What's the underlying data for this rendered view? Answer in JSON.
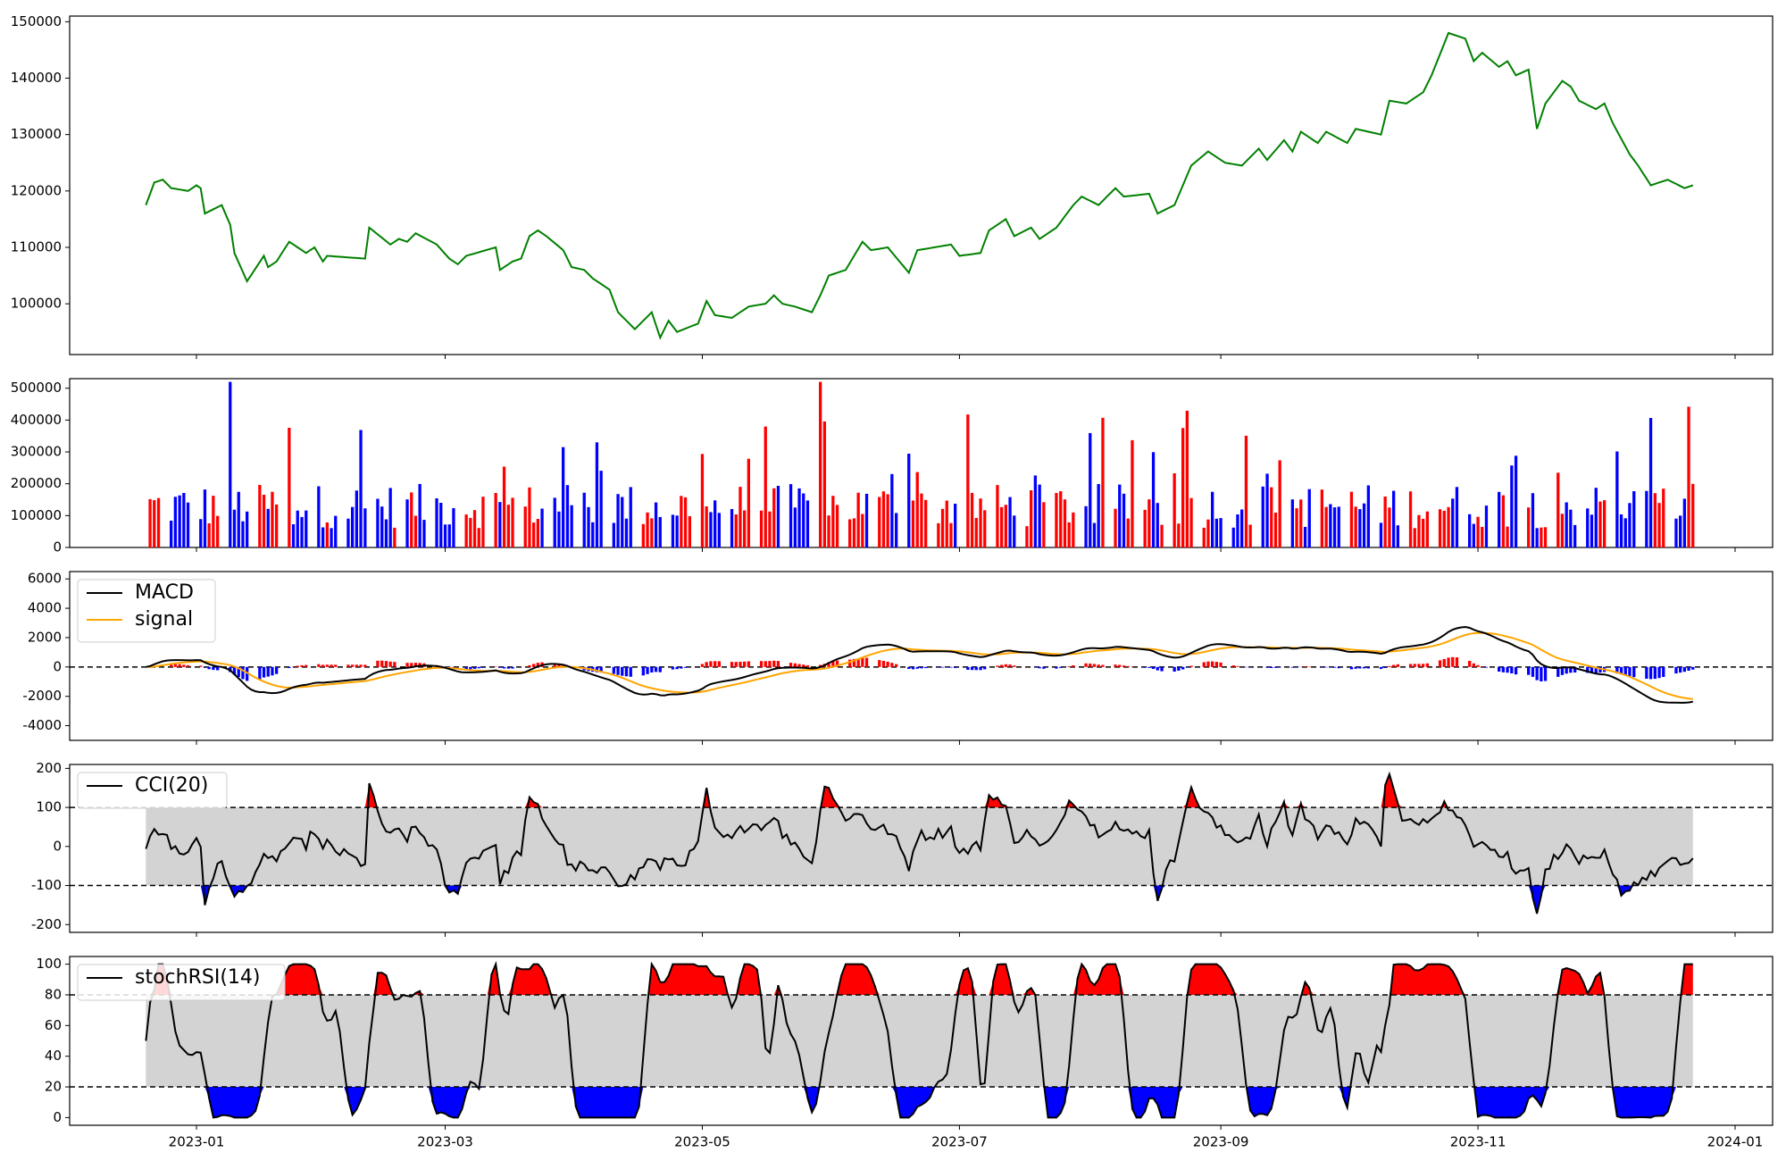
{
  "chart_data": [
    {
      "panel": "price",
      "type": "line",
      "color": "#008000",
      "x_start": "2022-12-20",
      "x_end": "2023-12-22",
      "ylim": [
        91000,
        151000
      ],
      "yticks": [
        100000,
        110000,
        120000,
        130000,
        140000,
        150000
      ],
      "anchors": [
        [
          "2022-12-20",
          117500
        ],
        [
          "2022-12-22",
          121500
        ],
        [
          "2022-12-24",
          122000
        ],
        [
          "2022-12-26",
          120500
        ],
        [
          "2022-12-30",
          120000
        ],
        [
          "2023-01-01",
          121000
        ],
        [
          "2023-01-02",
          120500
        ],
        [
          "2023-01-03",
          116000
        ],
        [
          "2023-01-07",
          117500
        ],
        [
          "2023-01-09",
          114000
        ],
        [
          "2023-01-10",
          109000
        ],
        [
          "2023-01-13",
          104000
        ],
        [
          "2023-01-17",
          108500
        ],
        [
          "2023-01-18",
          106500
        ],
        [
          "2023-01-20",
          107500
        ],
        [
          "2023-01-23",
          111000
        ],
        [
          "2023-01-27",
          109000
        ],
        [
          "2023-01-29",
          110000
        ],
        [
          "2023-01-31",
          107500
        ],
        [
          "2023-02-01",
          108500
        ],
        [
          "2023-02-10",
          108000
        ],
        [
          "2023-02-11",
          113500
        ],
        [
          "2023-02-16",
          110500
        ],
        [
          "2023-02-18",
          111500
        ],
        [
          "2023-02-20",
          111000
        ],
        [
          "2023-02-22",
          112500
        ],
        [
          "2023-02-27",
          110500
        ],
        [
          "2023-03-02",
          108000
        ],
        [
          "2023-03-04",
          107000
        ],
        [
          "2023-03-06",
          108500
        ],
        [
          "2023-03-13",
          110000
        ],
        [
          "2023-03-14",
          106000
        ],
        [
          "2023-03-17",
          107500
        ],
        [
          "2023-03-19",
          108000
        ],
        [
          "2023-03-21",
          112000
        ],
        [
          "2023-03-23",
          113000
        ],
        [
          "2023-03-25",
          112000
        ],
        [
          "2023-03-29",
          109500
        ],
        [
          "2023-03-31",
          106500
        ],
        [
          "2023-04-03",
          106000
        ],
        [
          "2023-04-05",
          104500
        ],
        [
          "2023-04-09",
          102500
        ],
        [
          "2023-04-11",
          98500
        ],
        [
          "2023-04-13",
          97000
        ],
        [
          "2023-04-15",
          95500
        ],
        [
          "2023-04-19",
          98500
        ],
        [
          "2023-04-21",
          94000
        ],
        [
          "2023-04-23",
          97000
        ],
        [
          "2023-04-25",
          95000
        ],
        [
          "2023-04-30",
          96500
        ],
        [
          "2023-05-02",
          100500
        ],
        [
          "2023-05-04",
          98000
        ],
        [
          "2023-05-08",
          97500
        ],
        [
          "2023-05-12",
          99500
        ],
        [
          "2023-05-16",
          100000
        ],
        [
          "2023-05-18",
          101500
        ],
        [
          "2023-05-20",
          100000
        ],
        [
          "2023-05-23",
          99500
        ],
        [
          "2023-05-27",
          98500
        ],
        [
          "2023-05-29",
          101500
        ],
        [
          "2023-05-31",
          105000
        ],
        [
          "2023-06-04",
          106000
        ],
        [
          "2023-06-08",
          111000
        ],
        [
          "2023-06-10",
          109500
        ],
        [
          "2023-06-14",
          110000
        ],
        [
          "2023-06-19",
          105500
        ],
        [
          "2023-06-21",
          109500
        ],
        [
          "2023-06-29",
          110500
        ],
        [
          "2023-07-01",
          108500
        ],
        [
          "2023-07-06",
          109000
        ],
        [
          "2023-07-08",
          113000
        ],
        [
          "2023-07-12",
          115000
        ],
        [
          "2023-07-14",
          112000
        ],
        [
          "2023-07-18",
          113500
        ],
        [
          "2023-07-20",
          111500
        ],
        [
          "2023-07-24",
          113500
        ],
        [
          "2023-07-28",
          117500
        ],
        [
          "2023-07-30",
          119000
        ],
        [
          "2023-08-03",
          117500
        ],
        [
          "2023-08-07",
          120500
        ],
        [
          "2023-08-09",
          119000
        ],
        [
          "2023-08-15",
          119500
        ],
        [
          "2023-08-17",
          116000
        ],
        [
          "2023-08-21",
          117500
        ],
        [
          "2023-08-25",
          124500
        ],
        [
          "2023-08-29",
          127000
        ],
        [
          "2023-09-02",
          125000
        ],
        [
          "2023-09-06",
          124500
        ],
        [
          "2023-09-10",
          127500
        ],
        [
          "2023-09-12",
          125500
        ],
        [
          "2023-09-16",
          129000
        ],
        [
          "2023-09-18",
          127000
        ],
        [
          "2023-09-20",
          130500
        ],
        [
          "2023-09-24",
          128500
        ],
        [
          "2023-09-26",
          130500
        ],
        [
          "2023-10-01",
          128500
        ],
        [
          "2023-10-03",
          131000
        ],
        [
          "2023-10-09",
          130000
        ],
        [
          "2023-10-11",
          136000
        ],
        [
          "2023-10-15",
          135500
        ],
        [
          "2023-10-19",
          137500
        ],
        [
          "2023-10-21",
          140500
        ],
        [
          "2023-10-25",
          148000
        ],
        [
          "2023-10-29",
          147000
        ],
        [
          "2023-10-31",
          143000
        ],
        [
          "2023-11-02",
          144500
        ],
        [
          "2023-11-06",
          142000
        ],
        [
          "2023-11-08",
          143000
        ],
        [
          "2023-11-10",
          140500
        ],
        [
          "2023-11-13",
          141500
        ],
        [
          "2023-11-15",
          131000
        ],
        [
          "2023-11-17",
          135500
        ],
        [
          "2023-11-21",
          139500
        ],
        [
          "2023-11-23",
          138500
        ],
        [
          "2023-11-25",
          136000
        ],
        [
          "2023-11-29",
          134500
        ],
        [
          "2023-12-01",
          135500
        ],
        [
          "2023-12-03",
          132000
        ],
        [
          "2023-12-07",
          126500
        ],
        [
          "2023-12-09",
          124500
        ],
        [
          "2023-12-12",
          121000
        ],
        [
          "2023-12-14",
          121500
        ],
        [
          "2023-12-16",
          122000
        ],
        [
          "2023-12-20",
          120500
        ],
        [
          "2023-12-22",
          121000
        ]
      ]
    }
  ],
  "x_axis": {
    "ticks": [
      {
        "date": "2023-01-01",
        "label": "2023-01"
      },
      {
        "date": "2023-03-01",
        "label": "2023-03"
      },
      {
        "date": "2023-05-01",
        "label": "2023-05"
      },
      {
        "date": "2023-07-01",
        "label": "2023-07"
      },
      {
        "date": "2023-09-01",
        "label": "2023-09"
      },
      {
        "date": "2023-11-01",
        "label": "2023-11"
      },
      {
        "date": "2024-01-01",
        "label": "2024-01"
      }
    ]
  },
  "volume": {
    "type": "bar",
    "ylim": [
      0,
      530000
    ],
    "yticks": [
      0,
      100000,
      200000,
      300000,
      400000,
      500000
    ],
    "colors": {
      "up": "#ff0000",
      "down": "#0000ff",
      "flat": "#000000"
    }
  },
  "macd": {
    "type": "line+bar",
    "ylim": [
      -5000,
      6500
    ],
    "yticks": [
      -4000,
      -2000,
      0,
      2000,
      4000,
      6000
    ],
    "legend": [
      "MACD",
      "signal"
    ],
    "colors": {
      "macd": "#000000",
      "signal": "#ffa500",
      "hist_pos": "#ff0000",
      "hist_neg": "#0000ff"
    }
  },
  "cci": {
    "type": "line+area",
    "ylim": [
      -220,
      210
    ],
    "yticks": [
      -200,
      -100,
      0,
      100,
      200
    ],
    "band": [
      -100,
      100
    ],
    "legend": [
      "CCI(20)"
    ],
    "colors": {
      "line": "#000000",
      "band": "#d3d3d3",
      "over": "#ff0000",
      "under": "#0000ff"
    }
  },
  "stochrsi": {
    "type": "line+area",
    "ylim": [
      -5,
      105
    ],
    "yticks": [
      0,
      20,
      40,
      60,
      80,
      100
    ],
    "band": [
      20,
      80
    ],
    "legend": [
      "stochRSI(14)"
    ],
    "colors": {
      "line": "#000000",
      "band": "#d3d3d3",
      "over": "#ff0000",
      "under": "#0000ff"
    }
  }
}
